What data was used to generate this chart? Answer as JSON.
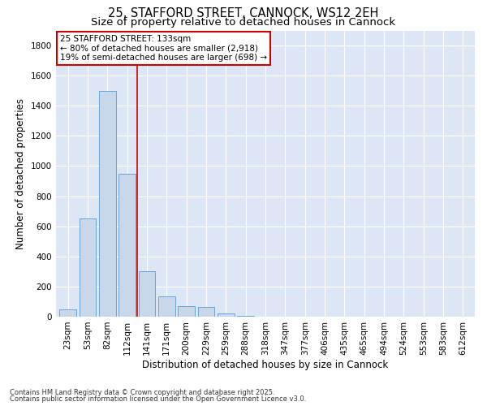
{
  "title_line1": "25, STAFFORD STREET, CANNOCK, WS12 2EH",
  "title_line2": "Size of property relative to detached houses in Cannock",
  "xlabel": "Distribution of detached houses by size in Cannock",
  "ylabel": "Number of detached properties",
  "bar_color": "#c8d8ea",
  "bar_edge_color": "#5b9bd5",
  "bg_color": "#dce6f5",
  "grid_color": "#ffffff",
  "fig_bg_color": "#ffffff",
  "categories": [
    "23sqm",
    "53sqm",
    "82sqm",
    "112sqm",
    "141sqm",
    "171sqm",
    "200sqm",
    "229sqm",
    "259sqm",
    "288sqm",
    "318sqm",
    "347sqm",
    "377sqm",
    "406sqm",
    "435sqm",
    "465sqm",
    "494sqm",
    "524sqm",
    "553sqm",
    "583sqm",
    "612sqm"
  ],
  "values": [
    50,
    650,
    1500,
    950,
    300,
    135,
    70,
    65,
    20,
    5,
    2,
    1,
    1,
    0,
    0,
    0,
    0,
    0,
    0,
    0,
    0
  ],
  "ylim": [
    0,
    1900
  ],
  "yticks": [
    0,
    200,
    400,
    600,
    800,
    1000,
    1200,
    1400,
    1600,
    1800
  ],
  "vline_x": 3.5,
  "vline_color": "#cc0000",
  "annotation_title": "25 STAFFORD STREET: 133sqm",
  "annotation_line1": "← 80% of detached houses are smaller (2,918)",
  "annotation_line2": "19% of semi-detached houses are larger (698) →",
  "annotation_box_color": "#cc0000",
  "footer_line1": "Contains HM Land Registry data © Crown copyright and database right 2025.",
  "footer_line2": "Contains public sector information licensed under the Open Government Licence v3.0.",
  "title_fontsize": 10.5,
  "subtitle_fontsize": 9.5,
  "axis_label_fontsize": 8.5,
  "tick_fontsize": 7.5,
  "annotation_fontsize": 7.5,
  "footer_fontsize": 6.0
}
